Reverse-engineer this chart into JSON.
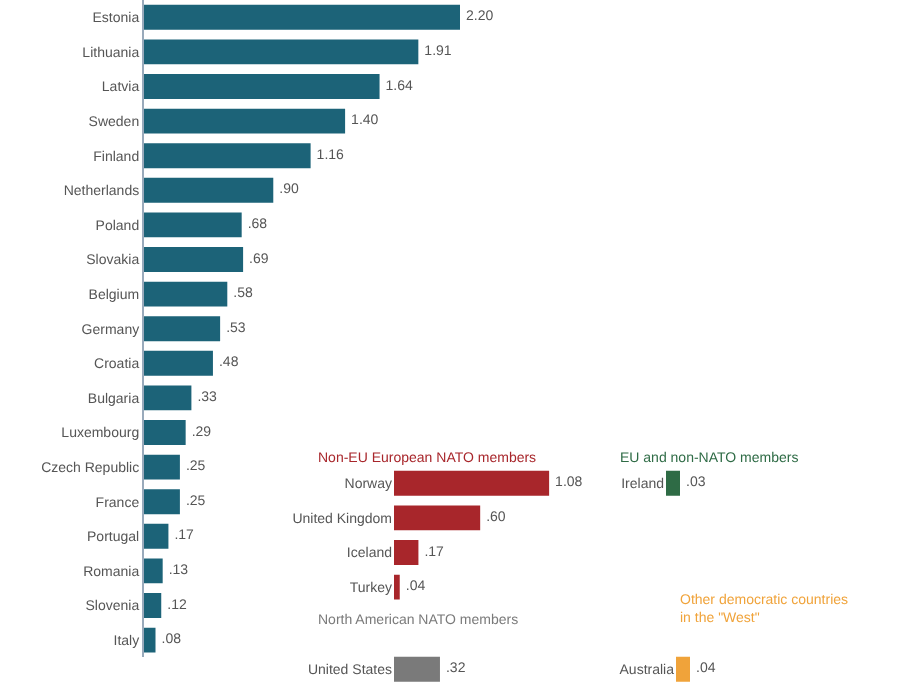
{
  "chart_data": [
    {
      "type": "bar",
      "orientation": "horizontal",
      "categories": [
        "Estonia",
        "Lithuania",
        "Latvia",
        "Sweden",
        "Finland",
        "Netherlands",
        "Poland",
        "Slovakia",
        "Belgium",
        "Germany",
        "Croatia",
        "Bulgaria",
        "Luxembourg",
        "Czech Republic",
        "France",
        "Portugal",
        "Romania",
        "Slovenia",
        "Italy"
      ],
      "values": [
        2.2,
        1.91,
        1.64,
        1.4,
        1.16,
        0.9,
        0.68,
        0.69,
        0.58,
        0.53,
        0.48,
        0.33,
        0.29,
        0.25,
        0.25,
        0.17,
        0.13,
        0.12,
        0.08
      ],
      "value_labels": [
        "2.20",
        "1.91",
        "1.64",
        "1.40",
        "1.16",
        ".90",
        ".68",
        ".69",
        ".58",
        ".53",
        ".48",
        ".33",
        ".29",
        ".25",
        ".25",
        ".17",
        ".13",
        ".12",
        ".08"
      ],
      "color": "#1c6378"
    },
    {
      "type": "bar",
      "orientation": "horizontal",
      "title": "Non-EU European NATO members",
      "categories": [
        "Norway",
        "United Kingdom",
        "Iceland",
        "Turkey"
      ],
      "values": [
        1.08,
        0.6,
        0.17,
        0.04
      ],
      "value_labels": [
        "1.08",
        ".60",
        ".17",
        ".04"
      ],
      "color": "#a8262b"
    },
    {
      "type": "bar",
      "orientation": "horizontal",
      "title": "EU and non-NATO members",
      "categories": [
        "Ireland"
      ],
      "values": [
        0.03
      ],
      "value_labels": [
        ".03"
      ],
      "color": "#2e6b45"
    },
    {
      "type": "bar",
      "orientation": "horizontal",
      "title": "North American NATO members",
      "categories": [
        "United States"
      ],
      "values": [
        0.32
      ],
      "value_labels": [
        ".32"
      ],
      "color": "#7a7a7a"
    },
    {
      "type": "bar",
      "orientation": "horizontal",
      "title": "Other democratic countries\nin the \"West\"",
      "categories": [
        "Australia"
      ],
      "values": [
        0.04
      ],
      "value_labels": [
        ".04"
      ],
      "color": "#f0a33a"
    }
  ]
}
